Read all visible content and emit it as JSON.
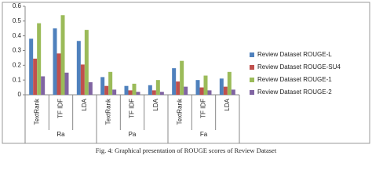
{
  "chart_data": {
    "type": "bar",
    "groups": [
      {
        "name": "Ra",
        "categories": [
          "TextRank",
          "TF IDF",
          "LDA"
        ]
      },
      {
        "name": "Pa",
        "categories": [
          "TextRank",
          "TF IDF",
          "LDA"
        ]
      },
      {
        "name": "Fa",
        "categories": [
          "TextRank",
          "TF IDF",
          "LDA"
        ]
      }
    ],
    "series": [
      {
        "name": "Review Dataset ROUGE-L",
        "color": "#4f81bd",
        "values": [
          0.38,
          0.45,
          0.365,
          0.12,
          0.06,
          0.065,
          0.18,
          0.1,
          0.11
        ]
      },
      {
        "name": "Review Dataset ROUGE-SU4",
        "color": "#c0504d",
        "values": [
          0.245,
          0.28,
          0.205,
          0.06,
          0.03,
          0.03,
          0.09,
          0.05,
          0.055
        ]
      },
      {
        "name": "Review Dataset ROUGE-1",
        "color": "#9bbb59",
        "values": [
          0.485,
          0.54,
          0.44,
          0.155,
          0.075,
          0.1,
          0.23,
          0.13,
          0.155
        ]
      },
      {
        "name": "Review Dataset ROUGE-2",
        "color": "#8064a2",
        "values": [
          0.125,
          0.15,
          0.085,
          0.035,
          0.02,
          0.02,
          0.055,
          0.03,
          0.035
        ]
      }
    ],
    "ylim": [
      0,
      0.6
    ],
    "yticks": [
      0,
      0.1,
      0.2,
      0.3,
      0.4,
      0.5,
      0.6
    ],
    "legend": "right",
    "caption": "Fig. 4: Graphical presentation of ROUGE  scores of Review Dataset"
  }
}
